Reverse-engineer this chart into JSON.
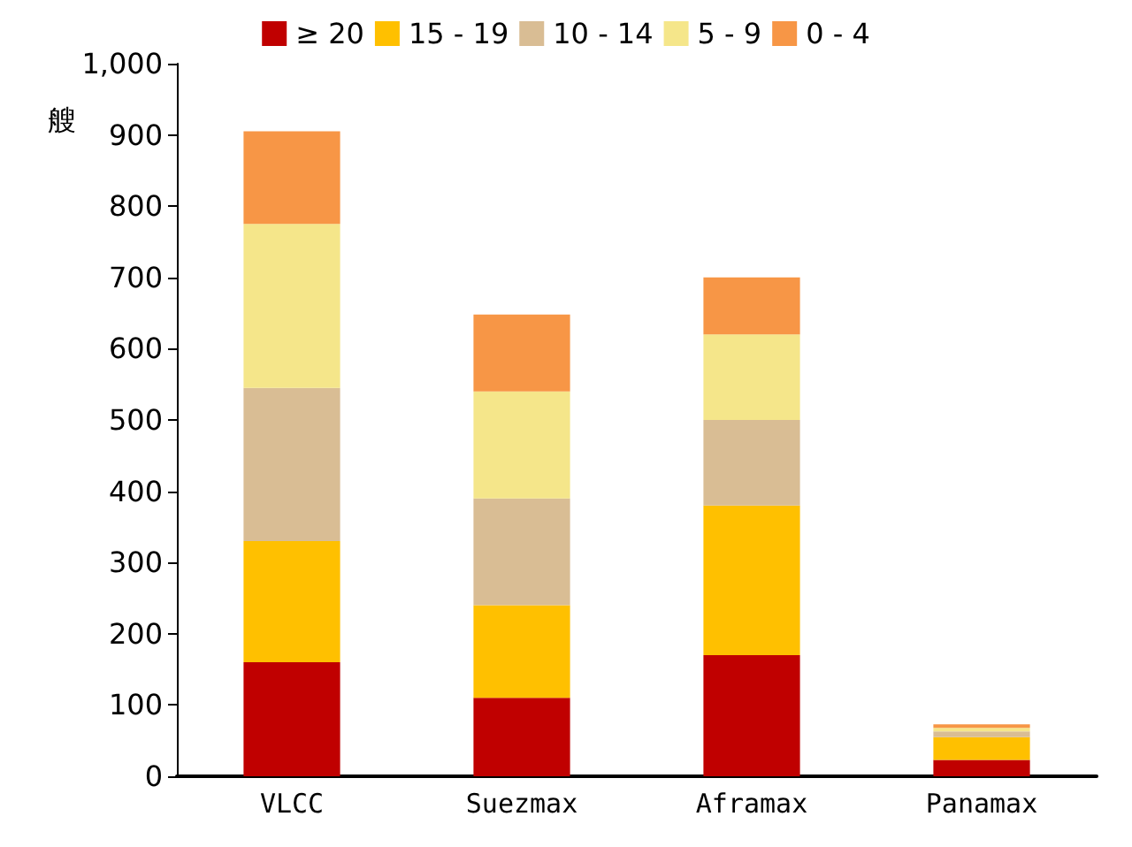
{
  "chart_data": {
    "type": "bar",
    "stacked": true,
    "ylabel": "艘",
    "categories": [
      "VLCC",
      "Suezmax",
      "Aframax",
      "Panamax"
    ],
    "series": [
      {
        "name": "≥ 20",
        "color": "#c00000",
        "values": [
          160,
          110,
          170,
          23
        ]
      },
      {
        "name": "15 - 19",
        "color": "#ffc000",
        "values": [
          170,
          130,
          210,
          32
        ]
      },
      {
        "name": "10 - 14",
        "color": "#d9bd94",
        "values": [
          215,
          150,
          120,
          8
        ]
      },
      {
        "name": "5 - 9",
        "color": "#f5e68a",
        "values": [
          230,
          150,
          120,
          5
        ]
      },
      {
        "name": "0 - 4",
        "color": "#f79646",
        "values": [
          130,
          108,
          80,
          5
        ]
      }
    ],
    "ylim": [
      0,
      1000
    ],
    "yticks": [
      {
        "value": 0,
        "label": "0"
      },
      {
        "value": 100,
        "label": "100"
      },
      {
        "value": 200,
        "label": "200"
      },
      {
        "value": 300,
        "label": "300"
      },
      {
        "value": 400,
        "label": "400"
      },
      {
        "value": 500,
        "label": "500"
      },
      {
        "value": 600,
        "label": "600"
      },
      {
        "value": 700,
        "label": "700"
      },
      {
        "value": 800,
        "label": "800"
      },
      {
        "value": 900,
        "label": "900"
      },
      {
        "value": 1000,
        "label": "1,000"
      }
    ],
    "grid": false,
    "legend": "top"
  }
}
